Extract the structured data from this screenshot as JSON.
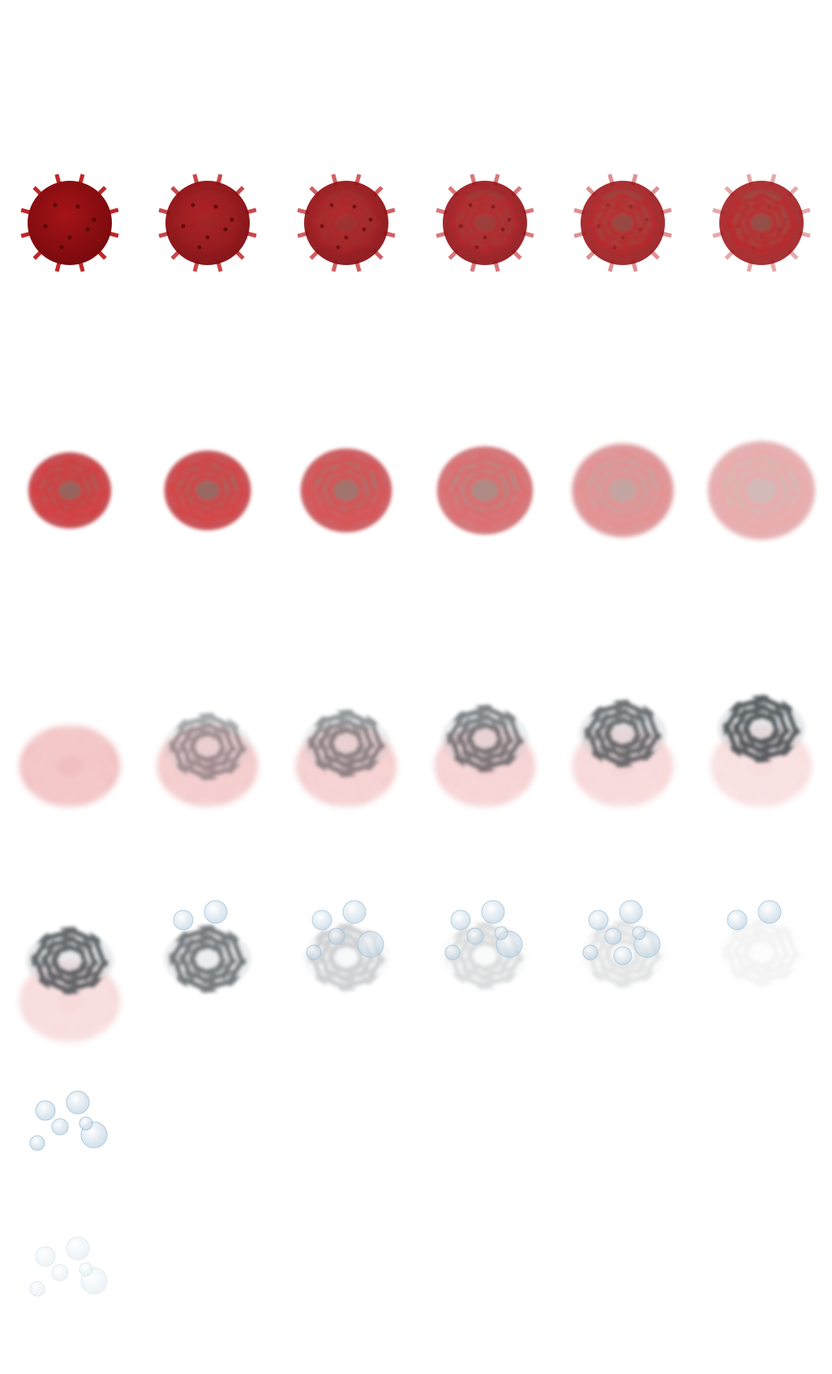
{
  "sprite_sheet": {
    "background": "#ffffff",
    "colors": {
      "mine_red": "#8e0f12",
      "mine_red_light": "#c0262a",
      "ember_grey": "#6f6a5a",
      "smoke_grey": "#3c4448",
      "smoke_light": "#c8ccd0",
      "bubble_blue": "#c6d7e4"
    },
    "frames": [
      {
        "kind": "mine",
        "fade": 0.0,
        "burst": 0.0
      },
      {
        "kind": "mine",
        "fade": 0.2,
        "burst": 0.15
      },
      {
        "kind": "mine",
        "fade": 0.35,
        "burst": 0.35
      },
      {
        "kind": "mine",
        "fade": 0.5,
        "burst": 0.55
      },
      {
        "kind": "mine",
        "fade": 0.65,
        "burst": 0.75
      },
      {
        "kind": "mine",
        "fade": 0.8,
        "burst": 0.9
      },
      {
        "kind": "blast",
        "opacity": 0.95,
        "scale": 0.88,
        "blur": 1
      },
      {
        "kind": "blast",
        "opacity": 0.92,
        "scale": 0.92,
        "blur": 1.5
      },
      {
        "kind": "blast",
        "opacity": 0.85,
        "scale": 0.97,
        "blur": 2
      },
      {
        "kind": "blast",
        "opacity": 0.72,
        "scale": 1.02,
        "blur": 2.5
      },
      {
        "kind": "blast",
        "opacity": 0.55,
        "scale": 1.08,
        "blur": 3
      },
      {
        "kind": "blast",
        "opacity": 0.42,
        "scale": 1.14,
        "blur": 3.5
      },
      {
        "kind": "smoke",
        "red": 0.35,
        "dark": 0.0,
        "rise": 0.0
      },
      {
        "kind": "smoke",
        "red": 0.3,
        "dark": 0.45,
        "rise": 0.1
      },
      {
        "kind": "smoke",
        "red": 0.28,
        "dark": 0.55,
        "rise": 0.2
      },
      {
        "kind": "smoke",
        "red": 0.26,
        "dark": 0.65,
        "rise": 0.35
      },
      {
        "kind": "smoke",
        "red": 0.22,
        "dark": 0.75,
        "rise": 0.5
      },
      {
        "kind": "smoke",
        "red": 0.18,
        "dark": 0.85,
        "rise": 0.65
      },
      {
        "kind": "smoke",
        "red": 0.2,
        "dark": 0.8,
        "rise": 0.75,
        "bubbles": 0
      },
      {
        "kind": "smoke",
        "red": 0.0,
        "dark": 0.7,
        "rise": 0.8,
        "bubbles": 2
      },
      {
        "kind": "smoke",
        "red": 0.0,
        "dark": 0.25,
        "rise": 0.85,
        "bubbles": 5
      },
      {
        "kind": "smoke",
        "red": 0.0,
        "dark": 0.18,
        "rise": 0.9,
        "bubbles": 6
      },
      {
        "kind": "smoke",
        "red": 0.0,
        "dark": 0.14,
        "rise": 0.95,
        "bubbles": 7
      },
      {
        "kind": "smoke",
        "red": 0.0,
        "dark": 0.06,
        "rise": 1.0,
        "bubbles": 2
      },
      {
        "kind": "bubbles",
        "opacity": 0.9
      },
      {
        "kind": "bubbles",
        "opacity": 0.35
      }
    ]
  }
}
